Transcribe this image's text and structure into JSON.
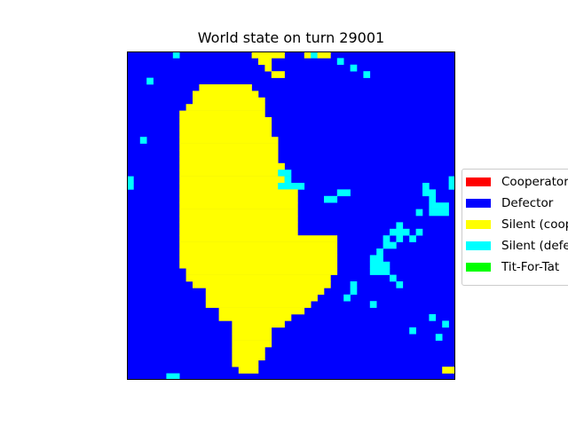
{
  "chart_data": {
    "type": "heatmap",
    "title": "World state on turn 29001",
    "grid": {
      "cols": 50,
      "rows": 50
    },
    "background_state": "defector",
    "legend": [
      {
        "key": "cooperator",
        "label": "Cooperator",
        "color": "#ff0000"
      },
      {
        "key": "defector",
        "label": "Defector",
        "color": "#0000ff"
      },
      {
        "key": "silent_coop",
        "label": "Silent (coop",
        "color": "#ffff00"
      },
      {
        "key": "silent_def",
        "label": "Silent (defe",
        "color": "#00ffff"
      },
      {
        "key": "tft",
        "label": "Tit-For-Tat",
        "color": "#00ff00"
      }
    ],
    "regions": {
      "silent_coop": [
        [
          5,
          11,
          19
        ],
        [
          6,
          10,
          20
        ],
        [
          7,
          10,
          21
        ],
        [
          8,
          9,
          21
        ],
        [
          9,
          8,
          21
        ],
        [
          10,
          8,
          22
        ],
        [
          11,
          8,
          22
        ],
        [
          12,
          8,
          22
        ],
        [
          13,
          8,
          23
        ],
        [
          14,
          8,
          23
        ],
        [
          15,
          8,
          23
        ],
        [
          16,
          8,
          23
        ],
        [
          17,
          8,
          24
        ],
        [
          18,
          8,
          24
        ],
        [
          19,
          8,
          24
        ],
        [
          20,
          8,
          25
        ],
        [
          21,
          8,
          26
        ],
        [
          22,
          8,
          26
        ],
        [
          23,
          8,
          26
        ],
        [
          24,
          8,
          26
        ],
        [
          25,
          8,
          26
        ],
        [
          26,
          8,
          26
        ],
        [
          27,
          8,
          26
        ],
        [
          28,
          8,
          25
        ],
        [
          29,
          8,
          25
        ],
        [
          30,
          8,
          25
        ],
        [
          31,
          8,
          24
        ],
        [
          32,
          8,
          24
        ],
        [
          33,
          9,
          23
        ],
        [
          34,
          9,
          23
        ],
        [
          35,
          10,
          21
        ],
        [
          36,
          12,
          18
        ],
        [
          37,
          13,
          16
        ],
        [
          38,
          13,
          15
        ],
        [
          28,
          18,
          32
        ],
        [
          29,
          18,
          32
        ],
        [
          30,
          18,
          32
        ],
        [
          31,
          18,
          32
        ],
        [
          32,
          18,
          32
        ],
        [
          33,
          18,
          32
        ],
        [
          34,
          18,
          31
        ],
        [
          35,
          17,
          31
        ],
        [
          36,
          17,
          30
        ],
        [
          37,
          16,
          29
        ],
        [
          38,
          16,
          28
        ],
        [
          39,
          16,
          27
        ],
        [
          40,
          16,
          25
        ],
        [
          41,
          17,
          24
        ],
        [
          36,
          12,
          18
        ],
        [
          37,
          12,
          17
        ],
        [
          38,
          12,
          16
        ],
        [
          39,
          14,
          18
        ],
        [
          40,
          14,
          19
        ],
        [
          41,
          16,
          21
        ],
        [
          42,
          16,
          22
        ],
        [
          43,
          16,
          22
        ],
        [
          44,
          16,
          22
        ],
        [
          45,
          16,
          21
        ],
        [
          46,
          16,
          21
        ],
        [
          47,
          16,
          20
        ],
        [
          48,
          17,
          20
        ],
        [
          0,
          19,
          24
        ],
        [
          1,
          20,
          22
        ],
        [
          2,
          21,
          22
        ],
        [
          3,
          22,
          24
        ],
        [
          0,
          27,
          31
        ]
      ],
      "silent_def": [
        [
          7,
          0,
          1
        ],
        [
          28,
          0,
          1
        ],
        [
          3,
          4,
          5
        ],
        [
          32,
          1,
          2
        ],
        [
          34,
          2,
          3
        ],
        [
          36,
          3,
          4
        ],
        [
          2,
          13,
          14
        ],
        [
          50,
          4,
          5
        ],
        [
          48,
          41,
          42
        ],
        [
          47,
          43,
          44
        ],
        [
          24,
          19,
          21
        ],
        [
          23,
          20,
          21
        ],
        [
          25,
          20,
          21
        ],
        [
          26,
          20,
          21
        ],
        [
          23,
          18,
          19
        ],
        [
          24,
          18,
          19
        ],
        [
          32,
          21,
          22
        ],
        [
          33,
          21,
          22
        ],
        [
          31,
          22,
          23
        ],
        [
          30,
          22,
          23
        ],
        [
          41,
          26,
          29
        ],
        [
          40,
          27,
          28
        ],
        [
          42,
          27,
          28
        ],
        [
          39,
          28,
          30
        ],
        [
          40,
          29,
          30
        ],
        [
          43,
          28,
          29
        ],
        [
          44,
          27,
          28
        ],
        [
          45,
          20,
          21
        ],
        [
          45,
          21,
          22
        ],
        [
          46,
          21,
          22
        ],
        [
          46,
          22,
          25
        ],
        [
          47,
          23,
          25
        ],
        [
          48,
          23,
          25
        ],
        [
          44,
          24,
          25
        ],
        [
          37,
          31,
          34
        ],
        [
          38,
          30,
          34
        ],
        [
          39,
          32,
          34
        ],
        [
          40,
          34,
          35
        ],
        [
          41,
          35,
          36
        ],
        [
          34,
          35,
          37
        ],
        [
          33,
          37,
          38
        ],
        [
          46,
          40,
          41
        ],
        [
          37,
          38,
          39
        ],
        [
          43,
          42,
          43
        ],
        [
          50,
          19,
          20
        ],
        [
          49,
          19,
          21
        ],
        [
          0,
          19,
          21
        ],
        [
          6,
          49,
          50
        ],
        [
          7,
          49,
          50
        ]
      ],
      "silent_coop_small": [
        [
          48,
          48,
          49
        ],
        [
          49,
          48,
          49
        ]
      ]
    }
  }
}
